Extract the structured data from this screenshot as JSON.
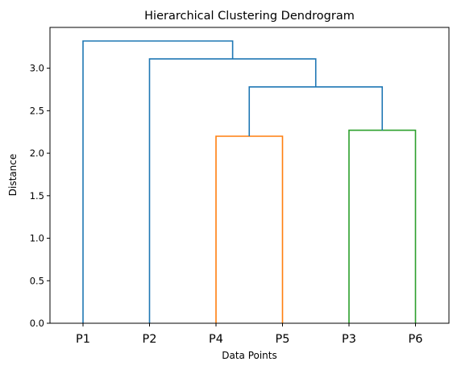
{
  "chart_data": {
    "type": "dendrogram",
    "title": "Hierarchical Clustering Dendrogram",
    "xlabel": "Data Points",
    "ylabel": "Distance",
    "leaves": [
      "P1",
      "P2",
      "P4",
      "P5",
      "P3",
      "P6"
    ],
    "ylim": [
      0,
      3.48
    ],
    "yticks": [
      0.0,
      0.5,
      1.0,
      1.5,
      2.0,
      2.5,
      3.0
    ],
    "ytick_labels": [
      "0.0",
      "0.5",
      "1.0",
      "1.5",
      "2.0",
      "2.5",
      "3.0"
    ],
    "grid": false,
    "merges": [
      {
        "left": "P4",
        "right": "P5",
        "distance": 2.2,
        "color": "#ff7f0e"
      },
      {
        "left": "P3",
        "right": "P6",
        "distance": 2.27,
        "color": "#2ca02c"
      },
      {
        "left": "P4+P5",
        "right": "P3+P6",
        "distance": 2.78,
        "color": "#1f77b4"
      },
      {
        "left": "P2",
        "right": "P4+P5+P3+P6",
        "distance": 3.11,
        "color": "#1f77b4"
      },
      {
        "left": "P1",
        "right": "P2+P4+P5+P3+P6",
        "distance": 3.32,
        "color": "#1f77b4"
      }
    ]
  }
}
